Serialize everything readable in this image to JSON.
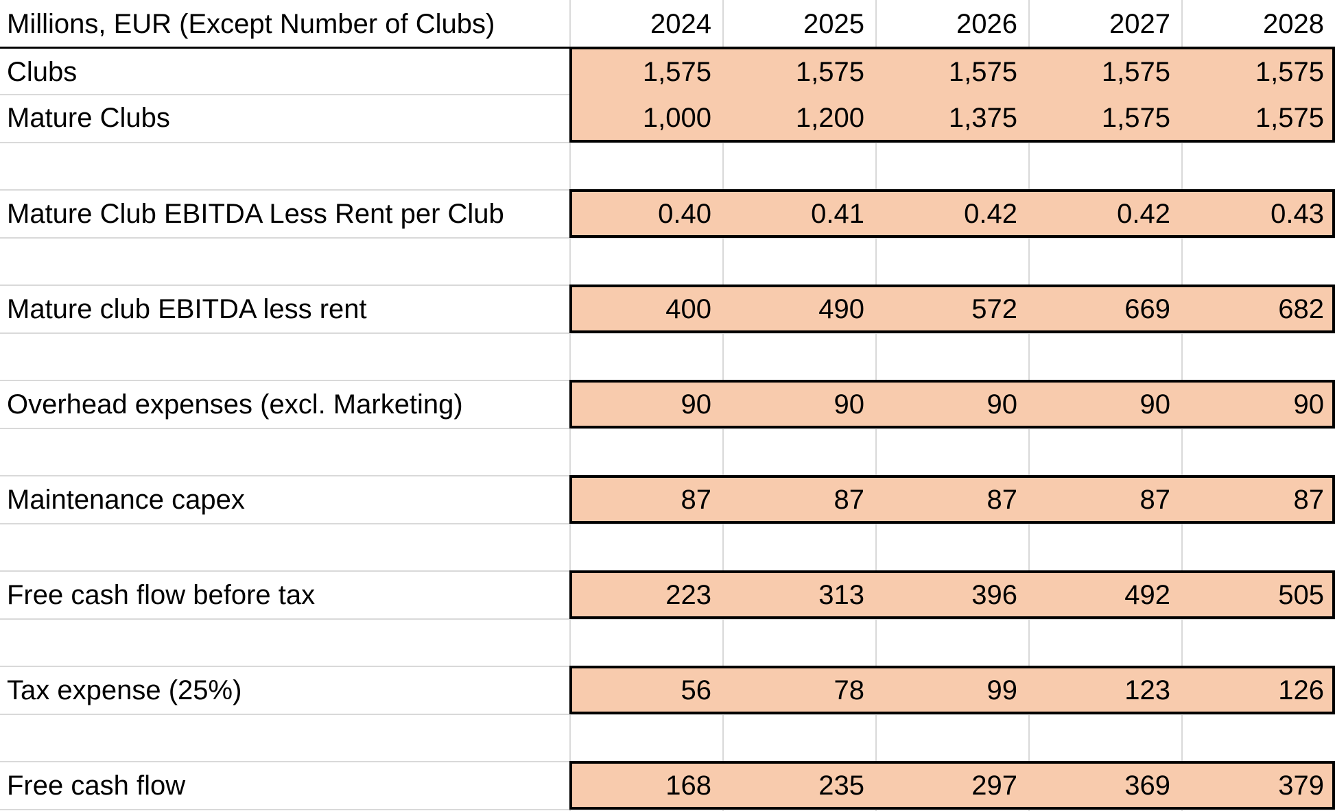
{
  "header": {
    "label": "Millions, EUR (Except Number of Clubs)",
    "years": [
      "2024",
      "2025",
      "2026",
      "2027",
      "2028"
    ]
  },
  "rows": [
    {
      "label": "Clubs",
      "values": [
        "1,575",
        "1,575",
        "1,575",
        "1,575",
        "1,575"
      ]
    },
    {
      "label": "Mature Clubs",
      "values": [
        "1,000",
        "1,200",
        "1,375",
        "1,575",
        "1,575"
      ]
    },
    {
      "label": "Mature Club EBITDA Less Rent per Club",
      "values": [
        "0.40",
        "0.41",
        "0.42",
        "0.42",
        "0.43"
      ]
    },
    {
      "label": "Mature club EBITDA less rent",
      "values": [
        "400",
        "490",
        "572",
        "669",
        "682"
      ]
    },
    {
      "label": "Overhead expenses (excl. Marketing)",
      "values": [
        "90",
        "90",
        "90",
        "90",
        "90"
      ]
    },
    {
      "label": "Maintenance capex",
      "values": [
        "87",
        "87",
        "87",
        "87",
        "87"
      ]
    },
    {
      "label": "Free cash flow before tax",
      "values": [
        "223",
        "313",
        "396",
        "492",
        "505"
      ]
    },
    {
      "label": "Tax expense (25%)",
      "values": [
        "56",
        "78",
        "99",
        "123",
        "126"
      ]
    },
    {
      "label": "Free cash flow",
      "values": [
        "168",
        "235",
        "297",
        "369",
        "379"
      ]
    }
  ],
  "colors": {
    "fill": "#f8cbad",
    "gridline": "#d9d9d9",
    "border": "#000000"
  }
}
